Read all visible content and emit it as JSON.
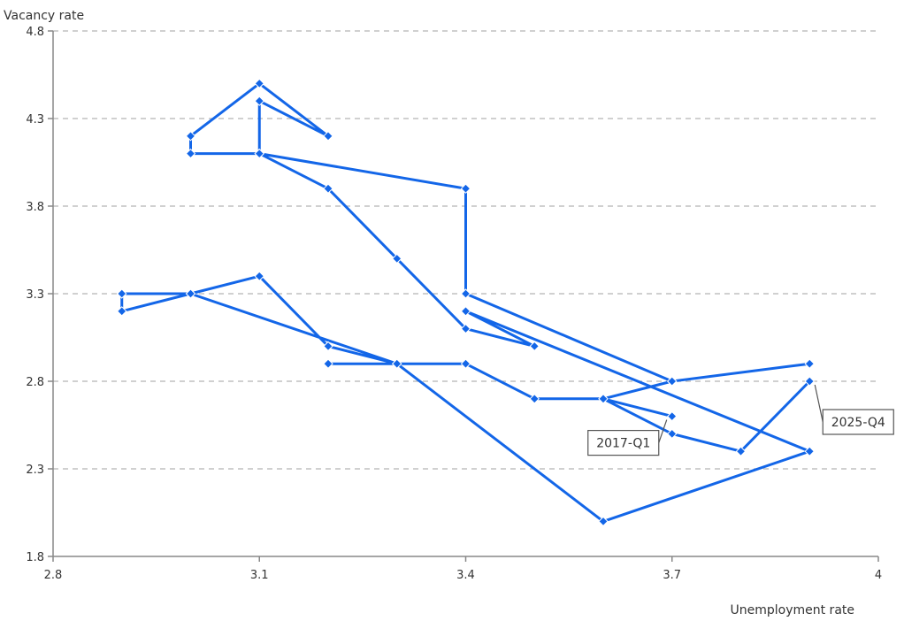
{
  "chart_data": {
    "type": "line",
    "xlabel": "Unemployment rate",
    "ylabel": "Vacancy rate",
    "xlim": [
      2.8,
      4.0
    ],
    "ylim": [
      1.8,
      4.8
    ],
    "x_ticks": [
      "2.8",
      "3.1",
      "3.4",
      "3.7",
      "4"
    ],
    "y_ticks": [
      "1.8",
      "2.3",
      "2.8",
      "3.3",
      "3.8",
      "4.3",
      "4.8"
    ],
    "grid": "horizontal dashed",
    "series_color": "#1366E8",
    "points": [
      {
        "x": 3.7,
        "y": 2.6
      },
      {
        "x": 3.6,
        "y": 2.7
      },
      {
        "x": 3.5,
        "y": 2.7
      },
      {
        "x": 3.4,
        "y": 2.9
      },
      {
        "x": 3.3,
        "y": 2.9
      },
      {
        "x": 3.2,
        "y": 2.9
      },
      {
        "x": 3.3,
        "y": 2.9
      },
      {
        "x": 3.2,
        "y": 3.0
      },
      {
        "x": 3.1,
        "y": 3.4
      },
      {
        "x": 3.0,
        "y": 3.3
      },
      {
        "x": 2.9,
        "y": 3.3
      },
      {
        "x": 2.9,
        "y": 3.2
      },
      {
        "x": 3.0,
        "y": 3.3
      },
      {
        "x": 3.3,
        "y": 2.9
      },
      {
        "x": 3.6,
        "y": 2.0
      },
      {
        "x": 3.9,
        "y": 2.4
      },
      {
        "x": 3.4,
        "y": 3.2
      },
      {
        "x": 3.5,
        "y": 3.0
      },
      {
        "x": 3.4,
        "y": 3.1
      },
      {
        "x": 3.3,
        "y": 3.5
      },
      {
        "x": 3.2,
        "y": 3.9
      },
      {
        "x": 3.1,
        "y": 4.1
      },
      {
        "x": 3.0,
        "y": 4.1
      },
      {
        "x": 3.0,
        "y": 4.2
      },
      {
        "x": 3.1,
        "y": 4.5
      },
      {
        "x": 3.2,
        "y": 4.2
      },
      {
        "x": 3.1,
        "y": 4.4
      },
      {
        "x": 3.1,
        "y": 4.1
      },
      {
        "x": 3.4,
        "y": 3.9
      },
      {
        "x": 3.4,
        "y": 3.3
      },
      {
        "x": 3.7,
        "y": 2.8
      },
      {
        "x": 3.9,
        "y": 2.9
      },
      {
        "x": 3.7,
        "y": 2.8
      },
      {
        "x": 3.6,
        "y": 2.7
      },
      {
        "x": 3.7,
        "y": 2.5
      },
      {
        "x": 3.8,
        "y": 2.4
      },
      {
        "x": 3.9,
        "y": 2.8
      }
    ],
    "annotations": [
      {
        "text": "2017-Q1",
        "point_index": 0
      },
      {
        "text": "2025-Q4",
        "point_index": 36
      }
    ]
  }
}
